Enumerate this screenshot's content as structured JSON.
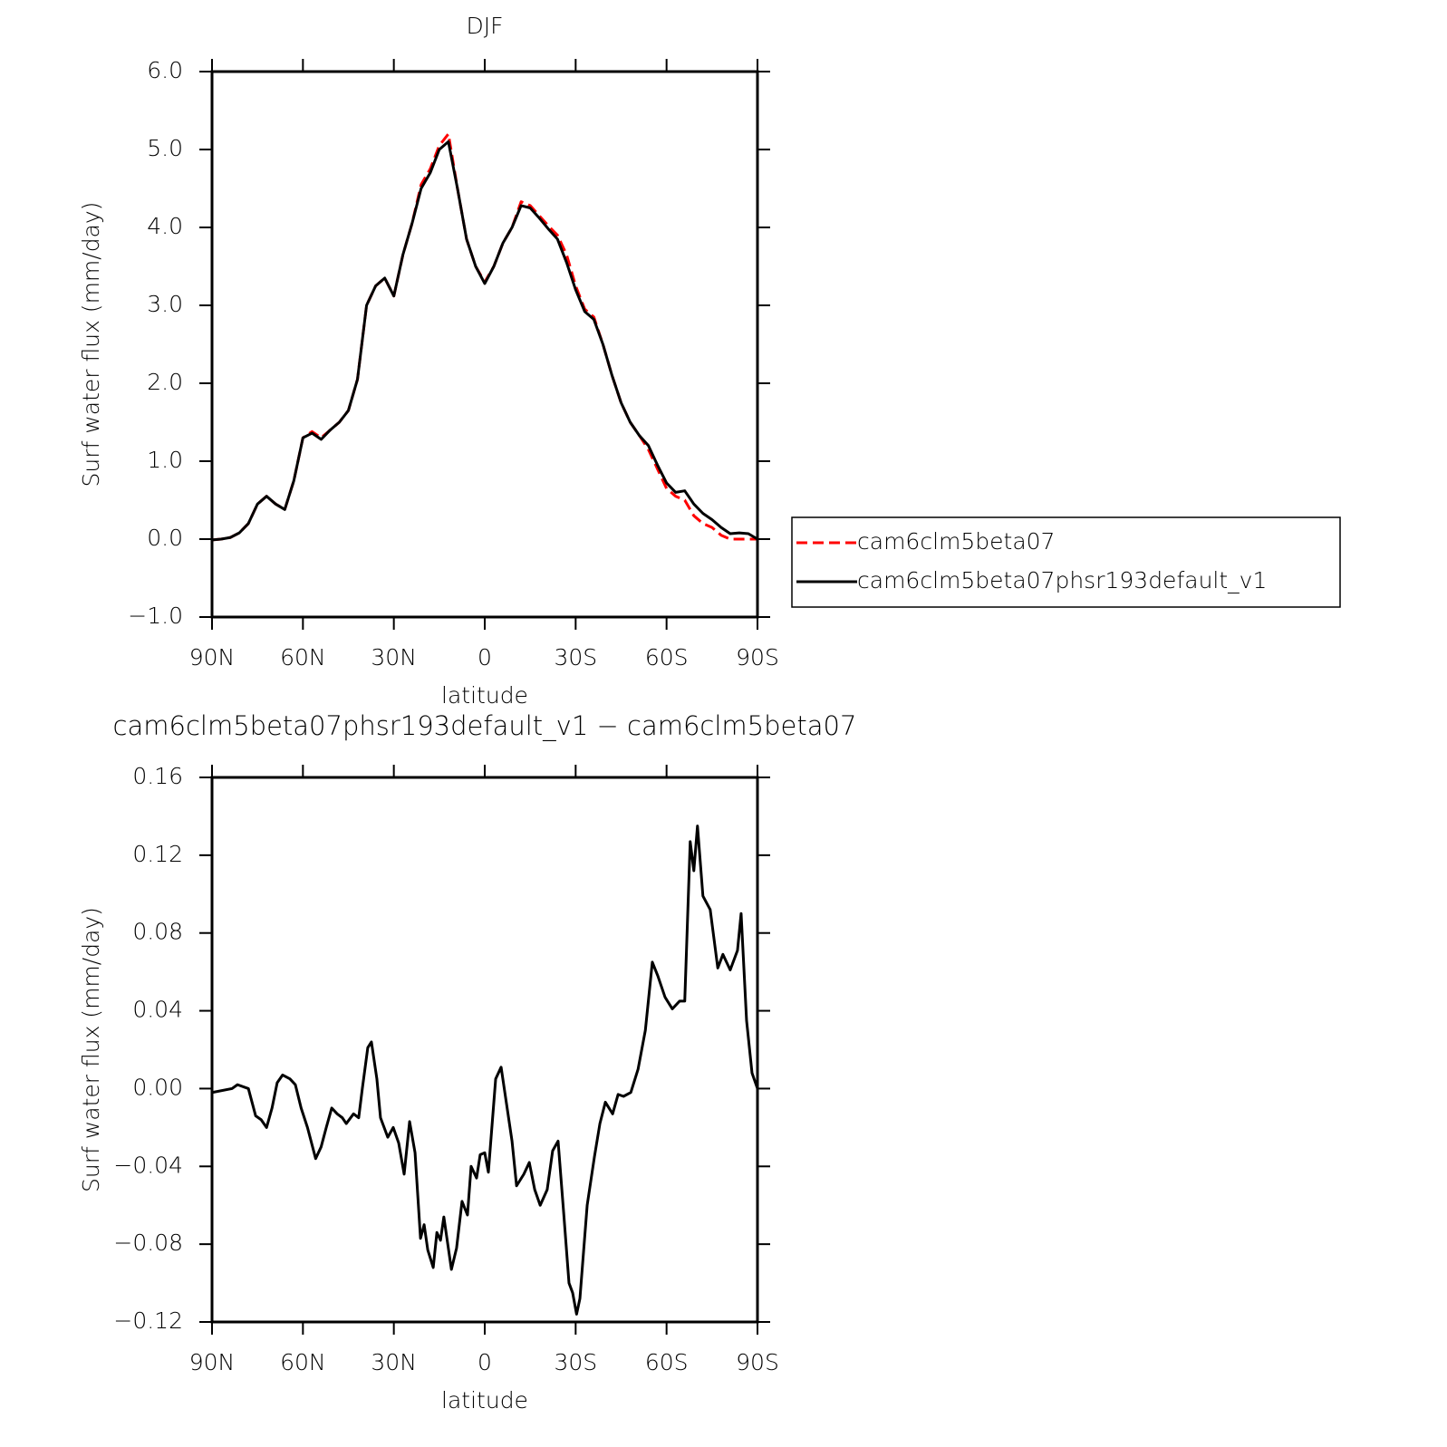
{
  "chart_data": [
    {
      "type": "line",
      "title": "DJF",
      "x_label": "latitude",
      "y_label": "Surf water flux (mm/day)",
      "x": [
        90,
        87,
        84,
        81,
        78,
        75,
        72,
        69,
        66,
        63,
        60,
        57,
        54,
        51,
        48,
        45,
        42,
        39,
        36,
        33,
        30,
        27,
        24,
        21,
        18,
        15,
        12,
        9,
        6,
        3,
        0,
        -3,
        -6,
        -9,
        -12,
        -15,
        -18,
        -21,
        -24,
        -27,
        -30,
        -33,
        -36,
        -39,
        -42,
        -45,
        -48,
        -51,
        -54,
        -57,
        -60,
        -63,
        -66,
        -69,
        -72,
        -75,
        -78,
        -81,
        -84,
        -87,
        -90
      ],
      "series": [
        {
          "name": "cam6clm5beta07",
          "color": "#ff0000",
          "dash": true,
          "values": [
            -0.01,
            0.0,
            0.02,
            0.08,
            0.2,
            0.45,
            0.55,
            0.45,
            0.38,
            0.75,
            1.3,
            1.38,
            1.3,
            1.4,
            1.5,
            1.65,
            2.05,
            3.0,
            3.25,
            3.35,
            3.12,
            3.65,
            4.05,
            4.55,
            4.75,
            5.05,
            5.2,
            4.5,
            3.85,
            3.5,
            3.3,
            3.5,
            3.8,
            4.0,
            4.33,
            4.28,
            4.15,
            4.02,
            3.9,
            3.65,
            3.25,
            2.95,
            2.85,
            2.5,
            2.1,
            1.75,
            1.5,
            1.33,
            1.15,
            0.9,
            0.65,
            0.55,
            0.5,
            0.3,
            0.2,
            0.15,
            0.05,
            0.0,
            0.0,
            0.0,
            0.0
          ]
        },
        {
          "name": "cam6clm5beta07phsr193default_v1",
          "color": "#000000",
          "dash": false,
          "values": [
            -0.01,
            0.0,
            0.02,
            0.08,
            0.2,
            0.45,
            0.55,
            0.45,
            0.38,
            0.75,
            1.3,
            1.36,
            1.28,
            1.4,
            1.5,
            1.65,
            2.05,
            3.0,
            3.25,
            3.35,
            3.12,
            3.65,
            4.05,
            4.5,
            4.7,
            5.0,
            5.1,
            4.5,
            3.85,
            3.5,
            3.28,
            3.5,
            3.8,
            4.0,
            4.28,
            4.25,
            4.12,
            3.98,
            3.85,
            3.55,
            3.2,
            2.92,
            2.82,
            2.5,
            2.1,
            1.75,
            1.5,
            1.33,
            1.2,
            0.95,
            0.72,
            0.6,
            0.62,
            0.45,
            0.33,
            0.25,
            0.15,
            0.07,
            0.08,
            0.07,
            0.0
          ]
        }
      ],
      "xlim": [
        90,
        -90
      ],
      "xticks": [
        {
          "value": 90,
          "label": "90N"
        },
        {
          "value": 60,
          "label": "60N"
        },
        {
          "value": 30,
          "label": "30N"
        },
        0,
        {
          "value": -30,
          "label": "30S"
        },
        {
          "value": -60,
          "label": "60S"
        },
        {
          "value": -90,
          "label": "90S"
        }
      ],
      "ylim": [
        -1,
        6
      ],
      "yticks": [
        {
          "value": -1,
          "label": "−1.0"
        },
        {
          "value": 0,
          "label": "0.0"
        },
        {
          "value": 1,
          "label": "1.0"
        },
        {
          "value": 2,
          "label": "2.0"
        },
        {
          "value": 3,
          "label": "3.0"
        },
        {
          "value": 4,
          "label": "4.0"
        },
        {
          "value": 5,
          "label": "5.0"
        },
        {
          "value": 6,
          "label": "6.0"
        }
      ],
      "legend": "right"
    },
    {
      "type": "line",
      "title": "cam6clm5beta07phsr193default_v1 − cam6clm5beta07",
      "x_label": "latitude",
      "y_label": "Surf water flux (mm/day)",
      "x": [
        90,
        83.4,
        81.6,
        78,
        75.6,
        73.8,
        72,
        70.2,
        68.5,
        66.7,
        64.3,
        62.5,
        60.6,
        58.5,
        55.8,
        54,
        52.3,
        50.5,
        48.7,
        47,
        45.7,
        43.3,
        41.6,
        40.4,
        38.6,
        37.4,
        35.6,
        34.4,
        32,
        30.2,
        28.4,
        26.6,
        24.8,
        23,
        21.2,
        20,
        18.8,
        17,
        15.8,
        14.6,
        13.5,
        11,
        9.3,
        7.5,
        5.7,
        4.5,
        2.7,
        1.5,
        0,
        -1.2,
        -3.6,
        -5.4,
        -7.2,
        -9,
        -10.5,
        -12.9,
        -14.7,
        -16.5,
        -18.3,
        -20.6,
        -22.4,
        -24.2,
        -26,
        -27.8,
        -29,
        -30.3,
        -31.4,
        -33.8,
        -36.2,
        -38,
        -39.8,
        -42.2,
        -44,
        -45.8,
        -48.2,
        -50.6,
        -53,
        -55.3,
        -57.1,
        -59.5,
        -61.9,
        -64.3,
        -66,
        -67.8,
        -69,
        -70.2,
        -72,
        -74.4,
        -76.9,
        -78.6,
        -81,
        -83.4,
        -84.6,
        -86.4,
        -88.2,
        -90
      ],
      "series": [
        {
          "color": "#000000",
          "dash": false,
          "values": [
            -0.002,
            0.0,
            0.002,
            0.0,
            -0.014,
            -0.016,
            -0.02,
            -0.01,
            0.003,
            0.007,
            0.005,
            0.002,
            -0.01,
            -0.02,
            -0.036,
            -0.03,
            -0.02,
            -0.01,
            -0.013,
            -0.015,
            -0.018,
            -0.013,
            -0.015,
            0.0,
            0.021,
            0.024,
            0.005,
            -0.015,
            -0.025,
            -0.02,
            -0.028,
            -0.044,
            -0.017,
            -0.033,
            -0.077,
            -0.07,
            -0.083,
            -0.092,
            -0.074,
            -0.078,
            -0.066,
            -0.093,
            -0.082,
            -0.058,
            -0.065,
            -0.04,
            -0.046,
            -0.034,
            -0.033,
            -0.043,
            0.005,
            0.011,
            -0.008,
            -0.027,
            -0.05,
            -0.044,
            -0.038,
            -0.052,
            -0.06,
            -0.052,
            -0.032,
            -0.027,
            -0.063,
            -0.1,
            -0.105,
            -0.116,
            -0.108,
            -0.06,
            -0.035,
            -0.018,
            -0.007,
            -0.013,
            -0.003,
            -0.004,
            -0.002,
            0.01,
            0.03,
            0.065,
            0.058,
            0.047,
            0.041,
            0.045,
            0.045,
            0.127,
            0.112,
            0.135,
            0.099,
            0.092,
            0.062,
            0.069,
            0.061,
            0.071,
            0.09,
            0.035,
            0.008,
            0.0
          ]
        }
      ],
      "xlim": [
        90,
        -90
      ],
      "xticks": [
        {
          "value": 90,
          "label": "90N"
        },
        {
          "value": 60,
          "label": "60N"
        },
        {
          "value": 30,
          "label": "30N"
        },
        0,
        {
          "value": -30,
          "label": "30S"
        },
        {
          "value": -60,
          "label": "60S"
        },
        {
          "value": -90,
          "label": "90S"
        }
      ],
      "ylim": [
        -0.12,
        0.16
      ],
      "yticks": [
        {
          "value": -0.12,
          "label": "−0.12"
        },
        {
          "value": -0.08,
          "label": "−0.08"
        },
        {
          "value": -0.04,
          "label": "−0.04"
        },
        {
          "value": 0,
          "label": "0.00"
        },
        0.04,
        0.08,
        0.12,
        0.16
      ]
    }
  ]
}
